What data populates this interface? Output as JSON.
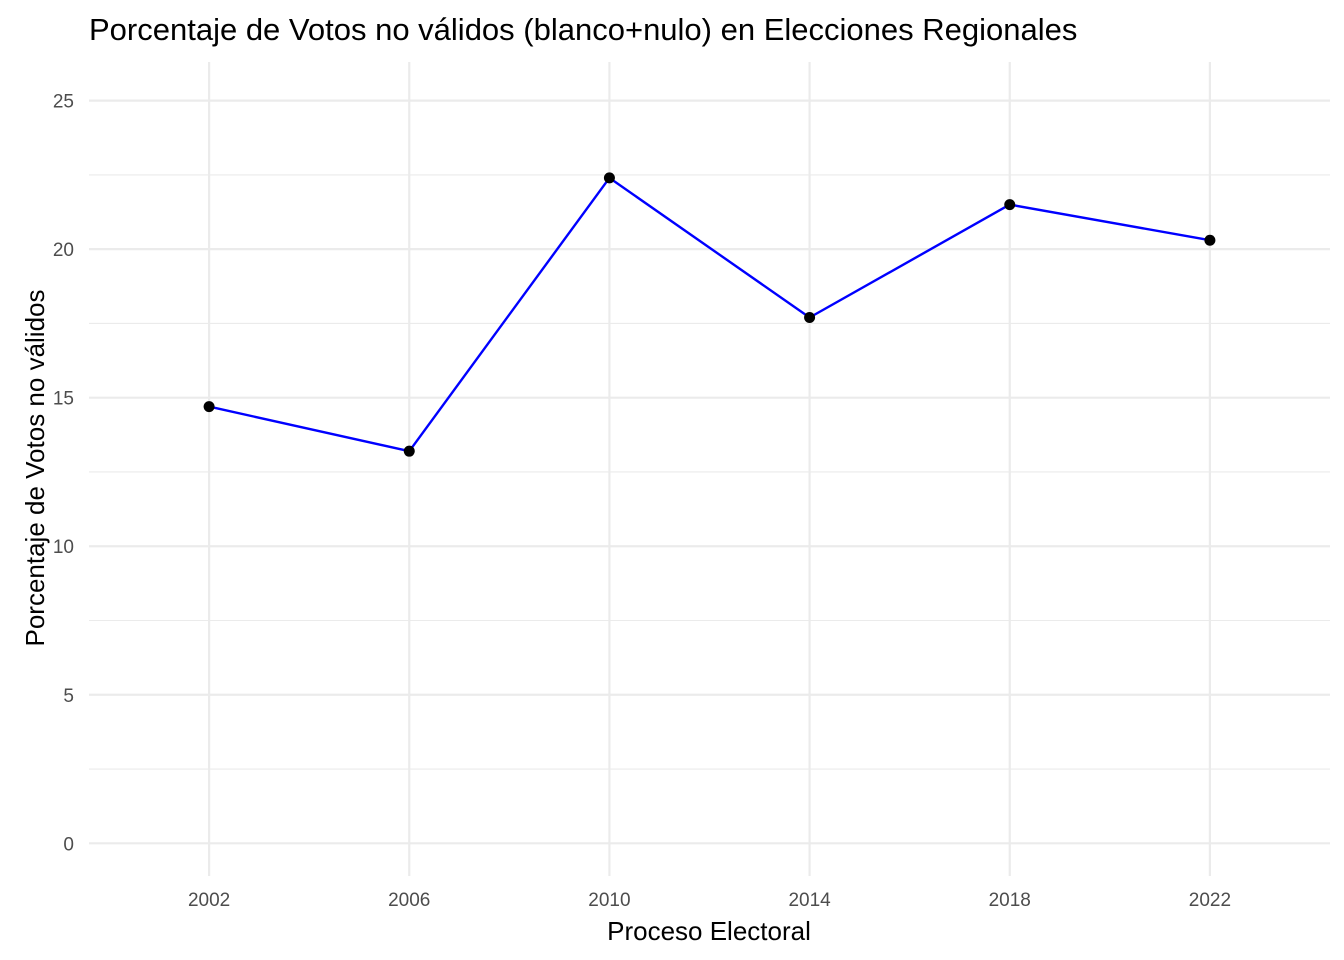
{
  "chart_data": {
    "type": "line",
    "title": "Porcentaje de Votos no válidos (blanco+nulo) en Elecciones Regionales",
    "xlabel": "Proceso Electoral",
    "ylabel": "Porcentaje de Votos no válidos",
    "x": [
      2002,
      2006,
      2010,
      2014,
      2018,
      2022
    ],
    "x_tick_labels": [
      "2002",
      "2006",
      "2010",
      "2014",
      "2018",
      "2022"
    ],
    "xlim": [
      1999.6,
      2024.4
    ],
    "y_ticks": [
      0,
      5,
      10,
      15,
      20,
      25
    ],
    "y_tick_labels": [
      "0",
      "5",
      "10",
      "15",
      "20",
      "25"
    ],
    "ylim": [
      -1.1,
      26.3
    ],
    "grid": true,
    "legend": "none",
    "series": [
      {
        "values": [
          14.7,
          13.2,
          22.4,
          17.7,
          21.5,
          20.3
        ],
        "line_color": "#0000ff",
        "point_color": "#000000"
      }
    ]
  }
}
